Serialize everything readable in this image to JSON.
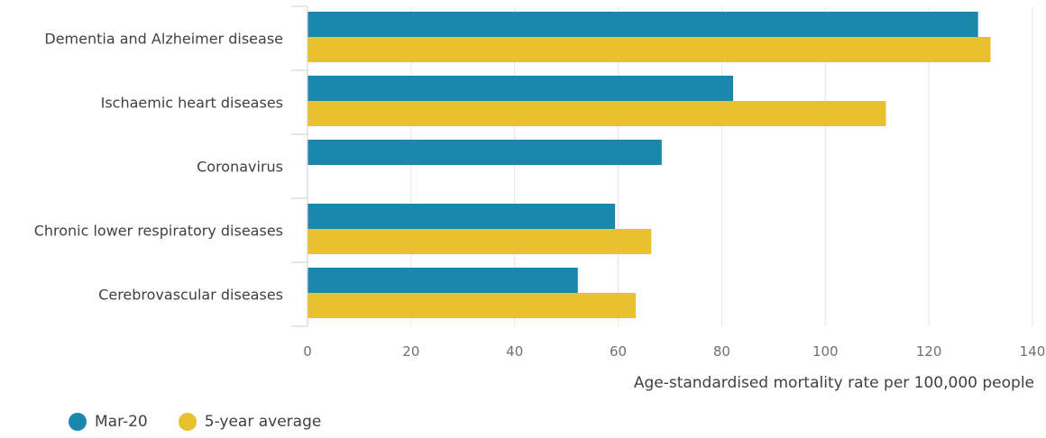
{
  "chart_data": {
    "type": "bar",
    "orientation": "horizontal",
    "categories": [
      "Dementia and Alzheimer disease",
      "Ischaemic heart diseases",
      "Coronavirus",
      "Chronic lower respiratory diseases",
      "Cerebrovascular diseases"
    ],
    "series": [
      {
        "name": "Mar-20",
        "color": "#1b87ad",
        "values": [
          129.5,
          82.2,
          68.4,
          59.4,
          52.2
        ]
      },
      {
        "name": "5-year average",
        "color": "#e8c12f",
        "values": [
          131.9,
          111.7,
          null,
          66.4,
          63.4
        ]
      }
    ],
    "xlabel": "Age-standardised mortality rate per 100,000 people",
    "xlim": [
      0,
      140
    ],
    "xticks": [
      0,
      20,
      40,
      60,
      80,
      100,
      120,
      140
    ],
    "grid": true,
    "legend_position": "bottom-left"
  }
}
